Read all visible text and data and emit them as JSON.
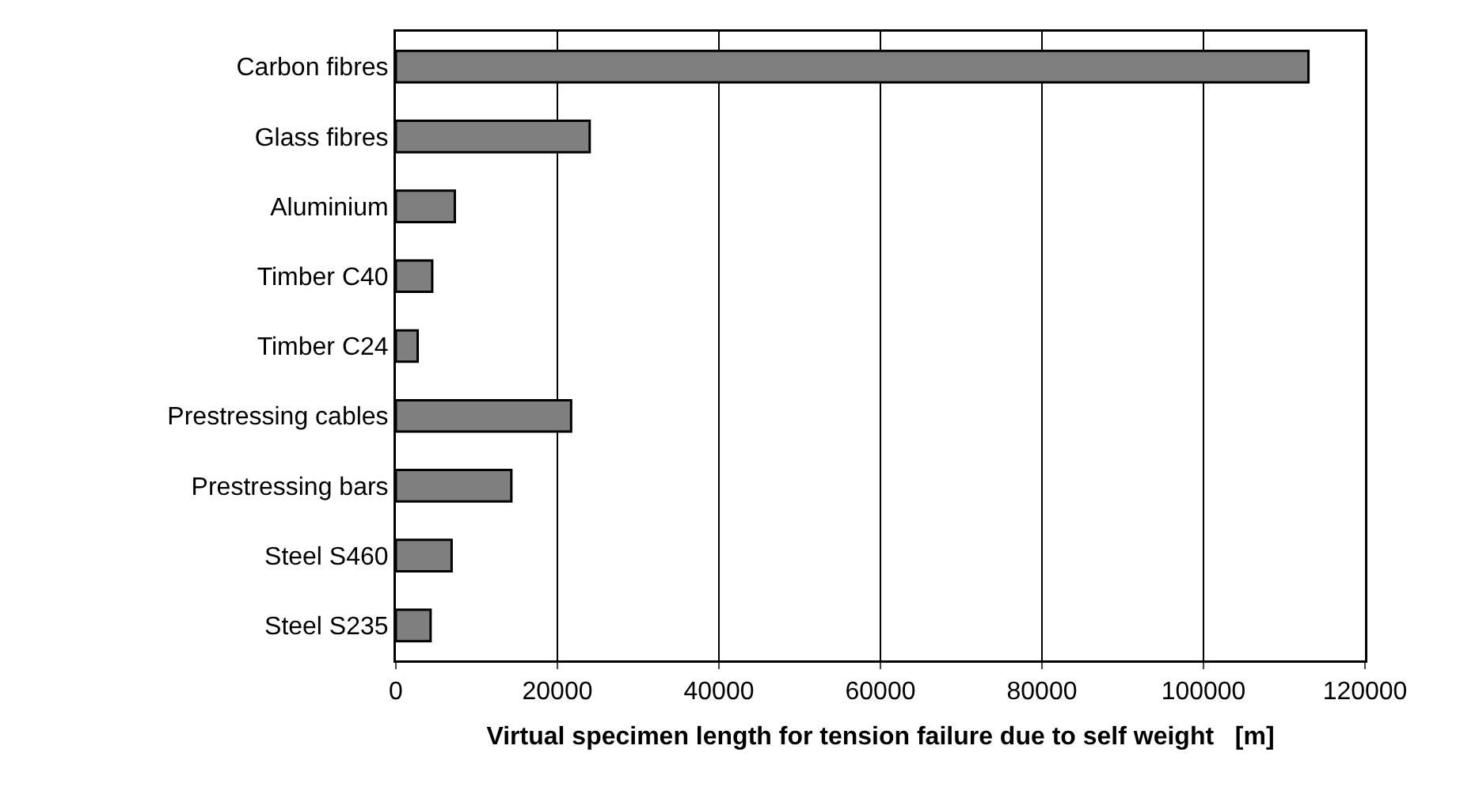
{
  "chart_data": {
    "type": "bar",
    "orientation": "horizontal",
    "xlabel": "Virtual specimen length for tension failure due to self weight   [m]",
    "categories": [
      "Carbon fibres",
      "Glass fibres",
      "Aluminium",
      "Timber C40",
      "Timber C24",
      "Prestressing cables",
      "Prestressing bars",
      "Steel S460",
      "Steel S235"
    ],
    "values": [
      113000,
      24000,
      7300,
      4500,
      2700,
      21700,
      14300,
      6900,
      4300
    ],
    "color": "#7f7f7f",
    "xlim": [
      0,
      120000
    ],
    "xticks": [
      0,
      20000,
      40000,
      60000,
      80000,
      100000,
      120000
    ],
    "grid": "x"
  }
}
